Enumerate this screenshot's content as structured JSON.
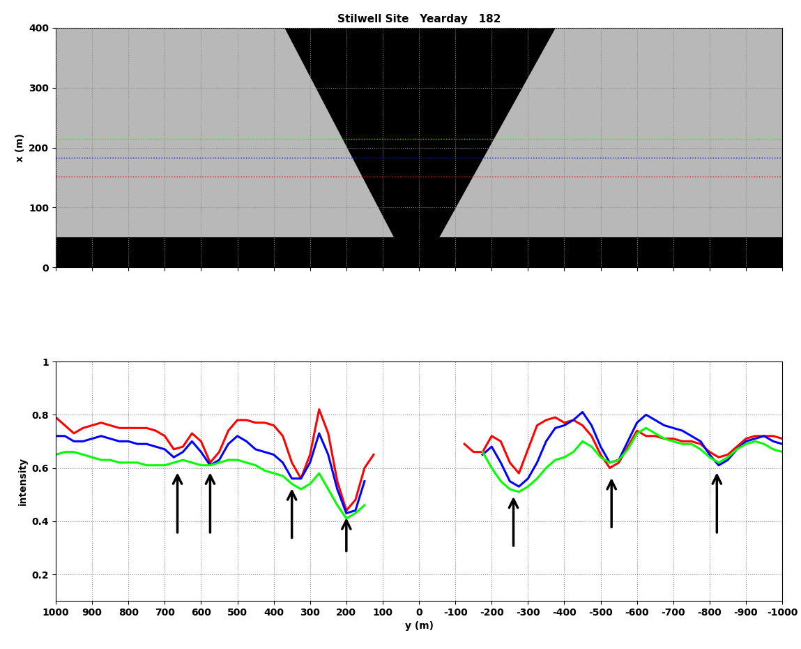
{
  "chart_data": [
    {
      "type": "image",
      "title": "Stilwell Site   Yearday   182",
      "y_label": "x (m)",
      "xlim": [
        1000,
        -1000
      ],
      "xticks": [
        1000,
        900,
        800,
        700,
        600,
        500,
        400,
        300,
        200,
        100,
        0,
        -100,
        -200,
        -300,
        -400,
        -500,
        -600,
        -700,
        -800,
        -900,
        -1000
      ],
      "ylim": [
        0,
        400
      ],
      "yticks": [
        0,
        100,
        200,
        300,
        400
      ],
      "grid": true,
      "tick_labels": "y",
      "masked_regions": [
        {
          "y": [
            370,
            -376,
            -56,
            69
          ],
          "x": [
            400,
            400,
            50,
            50
          ]
        },
        {
          "y": [
            1000,
            -1000,
            -1000,
            1000
          ],
          "x": [
            0,
            0,
            50,
            50
          ]
        }
      ],
      "series": [
        {
          "type": "hline",
          "color": "#00ff00",
          "line_style": "dotted",
          "values": [
            215
          ]
        },
        {
          "type": "hline",
          "color": "#0000ff",
          "line_style": "dotted",
          "values": [
            183
          ]
        },
        {
          "type": "hline",
          "color": "#ff0000",
          "line_style": "dotted",
          "values": [
            152
          ]
        }
      ]
    },
    {
      "type": "line",
      "x_label": "y (m)",
      "y_label": "intensity",
      "xlim": [
        1000,
        -1000
      ],
      "xticks": [
        1000,
        900,
        800,
        700,
        600,
        500,
        400,
        300,
        200,
        100,
        0,
        -100,
        -200,
        -300,
        -400,
        -500,
        -600,
        -700,
        -800,
        -900,
        -1000
      ],
      "ylim": [
        0.1,
        1
      ],
      "yticks": [
        0.2,
        0.4,
        0.6,
        0.8,
        1
      ],
      "grid": true,
      "x": [
        1000,
        975,
        950,
        925,
        900,
        875,
        850,
        825,
        800,
        775,
        750,
        725,
        700,
        675,
        650,
        625,
        600,
        575,
        550,
        525,
        500,
        475,
        450,
        425,
        400,
        375,
        350,
        325,
        300,
        275,
        250,
        225,
        200,
        175,
        150,
        125,
        100,
        75,
        50,
        25,
        0,
        -25,
        -50,
        -75,
        -100,
        -125,
        -150,
        -175,
        -200,
        -225,
        -250,
        -275,
        -300,
        -325,
        -350,
        -375,
        -400,
        -425,
        -450,
        -475,
        -500,
        -525,
        -550,
        -575,
        -600,
        -625,
        -650,
        -675,
        -700,
        -725,
        -750,
        -775,
        -800,
        -825,
        -850,
        -875,
        -900,
        -925,
        -950,
        -975,
        -1000
      ],
      "series": [
        {
          "color": "#ff0000",
          "values": [
            0.79,
            0.76,
            0.73,
            0.75,
            0.76,
            0.77,
            0.76,
            0.75,
            0.75,
            0.75,
            0.75,
            0.74,
            0.72,
            0.67,
            0.68,
            0.73,
            0.7,
            0.62,
            0.66,
            0.74,
            0.78,
            0.78,
            0.77,
            0.77,
            0.76,
            0.72,
            0.62,
            0.56,
            0.65,
            0.82,
            0.73,
            0.55,
            0.44,
            0.48,
            0.6,
            0.65,
            null,
            null,
            null,
            null,
            null,
            null,
            null,
            null,
            null,
            0.69,
            0.66,
            0.66,
            0.72,
            0.7,
            0.62,
            0.58,
            0.67,
            0.76,
            0.78,
            0.79,
            0.77,
            0.78,
            0.76,
            0.72,
            0.65,
            0.6,
            0.62,
            0.68,
            0.74,
            0.72,
            0.72,
            0.71,
            0.71,
            0.7,
            0.7,
            0.69,
            0.66,
            0.64,
            0.65,
            0.68,
            0.71,
            0.72,
            0.72,
            0.72,
            0.71
          ]
        },
        {
          "color": "#0000ff",
          "values": [
            0.72,
            0.72,
            0.7,
            0.7,
            0.71,
            0.72,
            0.71,
            0.7,
            0.7,
            0.69,
            0.69,
            0.68,
            0.67,
            0.64,
            0.66,
            0.7,
            0.66,
            0.61,
            0.63,
            0.69,
            0.72,
            0.7,
            0.67,
            0.66,
            0.65,
            0.62,
            0.56,
            0.56,
            0.62,
            0.73,
            0.65,
            0.52,
            0.43,
            0.44,
            0.55,
            null,
            null,
            null,
            null,
            null,
            null,
            null,
            null,
            null,
            null,
            null,
            null,
            0.65,
            0.68,
            0.62,
            0.55,
            0.53,
            0.56,
            0.62,
            0.7,
            0.75,
            0.76,
            0.78,
            0.81,
            0.76,
            0.68,
            0.62,
            0.63,
            0.7,
            0.77,
            0.8,
            0.78,
            0.76,
            0.75,
            0.74,
            0.72,
            0.7,
            0.65,
            0.61,
            0.63,
            0.67,
            0.7,
            0.71,
            0.72,
            0.7,
            0.69
          ]
        },
        {
          "color": "#00ff00",
          "values": [
            0.65,
            0.66,
            0.66,
            0.65,
            0.64,
            0.63,
            0.63,
            0.62,
            0.62,
            0.62,
            0.61,
            0.61,
            0.61,
            0.62,
            0.63,
            0.62,
            0.61,
            0.61,
            0.62,
            0.63,
            0.63,
            0.62,
            0.61,
            0.59,
            0.58,
            0.57,
            0.54,
            0.52,
            0.54,
            0.58,
            0.52,
            0.46,
            0.41,
            0.43,
            0.46,
            null,
            null,
            null,
            null,
            null,
            null,
            null,
            null,
            null,
            null,
            null,
            null,
            0.66,
            0.6,
            0.55,
            0.52,
            0.51,
            0.53,
            0.56,
            0.6,
            0.63,
            0.64,
            0.66,
            0.7,
            0.68,
            0.64,
            0.62,
            0.63,
            0.67,
            0.73,
            0.75,
            0.73,
            0.71,
            0.7,
            0.69,
            0.69,
            0.67,
            0.64,
            0.62,
            0.64,
            0.67,
            0.69,
            0.7,
            0.69,
            0.67,
            0.66
          ]
        }
      ],
      "arrows": [
        {
          "x": 665,
          "y_tip": 0.59,
          "y_tail": 0.35
        },
        {
          "x": 575,
          "y_tip": 0.59,
          "y_tail": 0.35
        },
        {
          "x": 350,
          "y_tip": 0.53,
          "y_tail": 0.33
        },
        {
          "x": 200,
          "y_tip": 0.42,
          "y_tail": 0.28
        },
        {
          "x": -260,
          "y_tip": 0.5,
          "y_tail": 0.3
        },
        {
          "x": -530,
          "y_tip": 0.57,
          "y_tail": 0.37
        },
        {
          "x": -820,
          "y_tip": 0.59,
          "y_tail": 0.35
        }
      ]
    }
  ]
}
